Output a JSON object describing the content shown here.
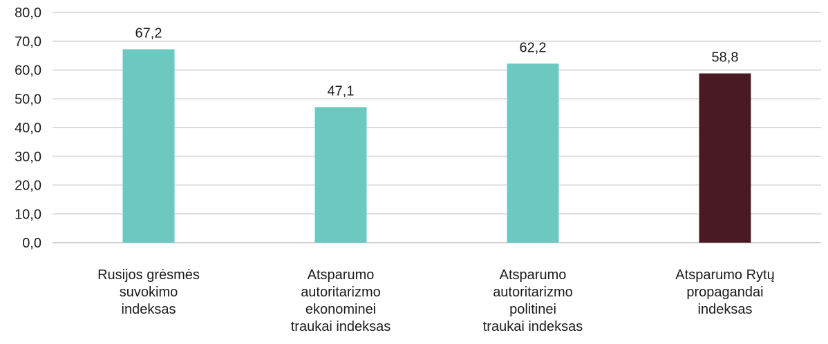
{
  "chart_data": {
    "type": "bar",
    "title": "",
    "xlabel": "",
    "ylabel": "",
    "ylim": [
      0,
      80
    ],
    "yticks": [
      "0,0",
      "10,0",
      "20,0",
      "30,0",
      "40,0",
      "50,0",
      "60,0",
      "70,0",
      "80,0"
    ],
    "grid": true,
    "legend": "none",
    "categories": [
      [
        "Rusijos grėsmės",
        "suvokimo",
        "indeksas"
      ],
      [
        "Atsparumo",
        "autoritarizmo",
        "ekonominei",
        "traukai indeksas"
      ],
      [
        "Atsparumo",
        "autoritarizmo",
        "politinei",
        "traukai indeksas"
      ],
      [
        "Atsparumo Rytų",
        "propagandai",
        "indeksas"
      ]
    ],
    "values": [
      67.2,
      47.1,
      62.2,
      58.8
    ],
    "value_labels": [
      "67,2",
      "47,1",
      "62,2",
      "58,8"
    ],
    "colors": [
      "#6cc9c1",
      "#6cc9c1",
      "#6cc9c1",
      "#4a1a24"
    ]
  }
}
